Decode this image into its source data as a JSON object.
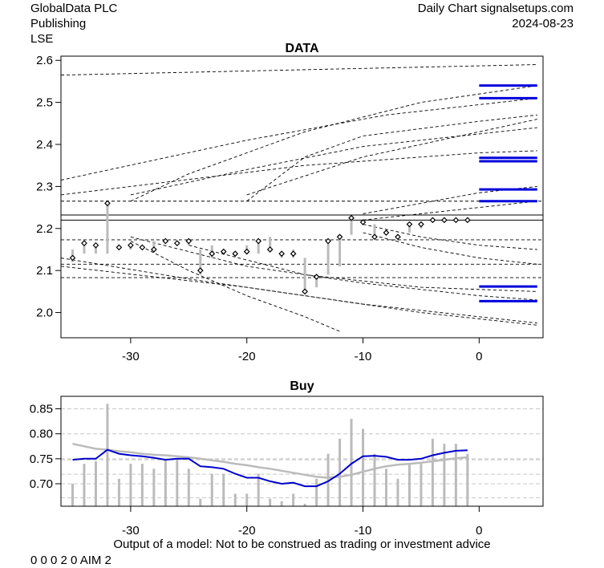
{
  "header": {
    "company": "GlobalData PLC",
    "sector": "Publishing",
    "exchange": "LSE",
    "site": "Daily Chart signalsetups.com",
    "date": "2024-08-23"
  },
  "footer": {
    "disclaimer": "Output of a model: Not to be construed as trading or investment advice",
    "codes": "0 0 0 2 0 AIM 2"
  },
  "chart_data": [
    {
      "type": "line",
      "title": "DATA",
      "xlabel": "",
      "ylabel": "",
      "xlim": [
        -36,
        5.5
      ],
      "ylim": [
        1.94,
        2.61
      ],
      "x_ticks": [
        -30,
        -20,
        -10,
        0
      ],
      "y_ticks": [
        2.0,
        2.1,
        2.2,
        2.3,
        2.4,
        2.5,
        2.6
      ],
      "x_tick_labels": [
        "-30",
        "-20",
        "-10",
        "0"
      ],
      "y_tick_labels": [
        "2.0",
        "2.1",
        "2.2",
        "2.3",
        "2.4",
        "2.5",
        "2.6"
      ],
      "grid": false,
      "price_points": [
        {
          "x": -35,
          "close": 2.13,
          "low": 2.12,
          "high": 2.15
        },
        {
          "x": -34,
          "close": 2.165,
          "low": 2.14,
          "high": 2.17
        },
        {
          "x": -33,
          "close": 2.16,
          "low": 2.14,
          "high": 2.16
        },
        {
          "x": -32,
          "close": 2.26,
          "low": 2.14,
          "high": 2.265
        },
        {
          "x": -31,
          "close": 2.155,
          "low": 2.155,
          "high": 2.16
        },
        {
          "x": -30,
          "close": 2.16,
          "low": 2.15,
          "high": 2.165
        },
        {
          "x": -29,
          "close": 2.155,
          "low": 2.15,
          "high": 2.16
        },
        {
          "x": -28,
          "close": 2.15,
          "low": 2.15,
          "high": 2.17
        },
        {
          "x": -27,
          "close": 2.17,
          "low": 2.165,
          "high": 2.175
        },
        {
          "x": -26,
          "close": 2.165,
          "low": 2.16,
          "high": 2.17
        },
        {
          "x": -25,
          "close": 2.17,
          "low": 2.16,
          "high": 2.17
        },
        {
          "x": -24,
          "close": 2.1,
          "low": 2.09,
          "high": 2.15
        },
        {
          "x": -23,
          "close": 2.14,
          "low": 2.13,
          "high": 2.16
        },
        {
          "x": -22,
          "close": 2.145,
          "low": 2.14,
          "high": 2.15
        },
        {
          "x": -21,
          "close": 2.14,
          "low": 2.135,
          "high": 2.145
        },
        {
          "x": -20,
          "close": 2.145,
          "low": 2.14,
          "high": 2.16
        },
        {
          "x": -19,
          "close": 2.17,
          "low": 2.14,
          "high": 2.175
        },
        {
          "x": -18,
          "close": 2.15,
          "low": 2.145,
          "high": 2.18
        },
        {
          "x": -17,
          "close": 2.14,
          "low": 2.13,
          "high": 2.145
        },
        {
          "x": -16,
          "close": 2.14,
          "low": 2.13,
          "high": 2.15
        },
        {
          "x": -15,
          "close": 2.05,
          "low": 2.05,
          "high": 2.13
        },
        {
          "x": -14,
          "close": 2.085,
          "low": 2.06,
          "high": 2.09
        },
        {
          "x": -13,
          "close": 2.17,
          "low": 2.09,
          "high": 2.175
        },
        {
          "x": -12,
          "close": 2.18,
          "low": 2.11,
          "high": 2.185
        },
        {
          "x": -11,
          "close": 2.225,
          "low": 2.185,
          "high": 2.23
        },
        {
          "x": -10,
          "close": 2.215,
          "low": 2.21,
          "high": 2.22
        },
        {
          "x": -9,
          "close": 2.18,
          "low": 2.175,
          "high": 2.21
        },
        {
          "x": -8,
          "close": 2.19,
          "low": 2.185,
          "high": 2.195
        },
        {
          "x": -7,
          "close": 2.18,
          "low": 2.175,
          "high": 2.185
        },
        {
          "x": -6,
          "close": 2.21,
          "low": 2.19,
          "high": 2.215
        },
        {
          "x": -5,
          "close": 2.21,
          "low": 2.2,
          "high": 2.215
        },
        {
          "x": -4,
          "close": 2.22,
          "low": 2.215,
          "high": 2.22
        },
        {
          "x": -3,
          "close": 2.22,
          "low": 2.215,
          "high": 2.222
        },
        {
          "x": -2,
          "close": 2.22,
          "low": 2.215,
          "high": 2.222
        },
        {
          "x": -1,
          "close": 2.22,
          "low": 2.215,
          "high": 2.222
        }
      ],
      "solid_hlines": [
        2.232,
        2.22
      ],
      "dashed_hlines": [
        2.265,
        2.173,
        2.115,
        2.083
      ],
      "dashed_curves": [
        [
          [
            -36,
            2.565
          ],
          [
            5,
            2.59
          ]
        ],
        [
          [
            -36,
            2.315
          ],
          [
            -20,
            2.41
          ],
          [
            -8,
            2.47
          ],
          [
            5,
            2.51
          ]
        ],
        [
          [
            -36,
            2.28
          ],
          [
            -15,
            2.35
          ],
          [
            0,
            2.38
          ],
          [
            5,
            2.385
          ]
        ],
        [
          [
            -30,
            2.265
          ],
          [
            -25,
            2.33
          ],
          [
            -15,
            2.43
          ],
          [
            -5,
            2.5
          ],
          [
            5,
            2.54
          ]
        ],
        [
          [
            -30,
            2.28
          ],
          [
            -20,
            2.34
          ],
          [
            -10,
            2.395
          ],
          [
            5,
            2.44
          ]
        ],
        [
          [
            -20,
            2.265
          ],
          [
            -15,
            2.37
          ],
          [
            -10,
            2.42
          ],
          [
            0,
            2.455
          ],
          [
            5,
            2.47
          ]
        ],
        [
          [
            -20,
            2.28
          ],
          [
            -10,
            2.37
          ],
          [
            0,
            2.43
          ],
          [
            5,
            2.46
          ]
        ],
        [
          [
            -10,
            2.235
          ],
          [
            -5,
            2.26
          ],
          [
            0,
            2.285
          ],
          [
            5,
            2.3
          ]
        ],
        [
          [
            -10,
            2.22
          ],
          [
            0,
            2.25
          ],
          [
            5,
            2.265
          ]
        ],
        [
          [
            -10,
            2.21
          ],
          [
            -5,
            2.18
          ],
          [
            0,
            2.16
          ],
          [
            5,
            2.15
          ]
        ],
        [
          [
            -10,
            2.19
          ],
          [
            -5,
            2.155
          ],
          [
            0,
            2.13
          ],
          [
            5,
            2.115
          ]
        ],
        [
          [
            -36,
            2.13
          ],
          [
            -25,
            2.08
          ],
          [
            -15,
            2.04
          ],
          [
            -5,
            2.0
          ],
          [
            5,
            1.97
          ]
        ],
        [
          [
            -36,
            2.11
          ],
          [
            -20,
            2.06
          ],
          [
            -10,
            2.02
          ],
          [
            0,
            1.99
          ],
          [
            5,
            1.975
          ]
        ],
        [
          [
            -30,
            2.18
          ],
          [
            -20,
            2.11
          ],
          [
            -10,
            2.07
          ],
          [
            0,
            2.04
          ],
          [
            5,
            2.03
          ]
        ],
        [
          [
            -30,
            2.17
          ],
          [
            -25,
            2.1
          ],
          [
            -20,
            2.04
          ],
          [
            -15,
            1.99
          ],
          [
            -12,
            1.955
          ]
        ],
        [
          [
            -25,
            2.16
          ],
          [
            -15,
            2.09
          ],
          [
            -5,
            2.06
          ],
          [
            5,
            2.05
          ]
        ]
      ],
      "target_levels": [
        2.54,
        2.51,
        2.368,
        2.36,
        2.293,
        2.265,
        2.062,
        2.027
      ],
      "target_range": [
        0,
        5
      ]
    },
    {
      "type": "bar",
      "title": "Buy",
      "xlabel": "",
      "ylabel": "",
      "xlim": [
        -36,
        5.5
      ],
      "ylim": [
        0.655,
        0.875
      ],
      "x_ticks": [
        -30,
        -20,
        -10,
        0
      ],
      "y_ticks": [
        0.7,
        0.75,
        0.8,
        0.85
      ],
      "x_tick_labels": [
        "-30",
        "-20",
        "-10",
        "0"
      ],
      "y_tick_labels": [
        "0.70",
        "0.75",
        "0.80",
        "0.85"
      ],
      "grid": true,
      "gridlines": [
        0.672,
        0.7,
        0.719,
        0.748,
        0.75,
        0.8,
        0.85
      ],
      "x": [
        -35,
        -34,
        -33,
        -32,
        -31,
        -30,
        -29,
        -28,
        -27,
        -26,
        -25,
        -24,
        -23,
        -22,
        -21,
        -20,
        -19,
        -18,
        -17,
        -16,
        -15,
        -14,
        -13,
        -12,
        -11,
        -10,
        -9,
        -8,
        -7,
        -6,
        -5,
        -4,
        -3,
        -2,
        -1
      ],
      "bars": [
        0.7,
        0.74,
        0.745,
        0.86,
        0.71,
        0.74,
        0.74,
        0.73,
        0.75,
        0.75,
        0.73,
        0.67,
        0.72,
        0.72,
        0.68,
        0.68,
        0.72,
        0.67,
        0.665,
        0.68,
        0.66,
        0.71,
        0.76,
        0.79,
        0.83,
        0.81,
        0.76,
        0.73,
        0.71,
        0.74,
        0.74,
        0.79,
        0.78,
        0.78,
        0.76
      ],
      "series": [
        {
          "name": "blue",
          "color": "#0000cc",
          "values": [
            0.748,
            0.75,
            0.75,
            0.768,
            0.76,
            0.757,
            0.755,
            0.752,
            0.748,
            0.75,
            0.75,
            0.735,
            0.733,
            0.73,
            0.72,
            0.712,
            0.712,
            0.705,
            0.7,
            0.702,
            0.695,
            0.695,
            0.705,
            0.72,
            0.74,
            0.755,
            0.756,
            0.754,
            0.748,
            0.748,
            0.75,
            0.757,
            0.762,
            0.766,
            0.767
          ]
        },
        {
          "name": "gray",
          "color": "#bbbbbb",
          "values": [
            0.78,
            0.775,
            0.77,
            0.768,
            0.765,
            0.763,
            0.76,
            0.758,
            0.757,
            0.755,
            0.753,
            0.75,
            0.747,
            0.744,
            0.74,
            0.737,
            0.733,
            0.73,
            0.726,
            0.722,
            0.718,
            0.714,
            0.712,
            0.714,
            0.718,
            0.724,
            0.73,
            0.735,
            0.738,
            0.74,
            0.742,
            0.745,
            0.748,
            0.751,
            0.753
          ]
        }
      ]
    }
  ]
}
